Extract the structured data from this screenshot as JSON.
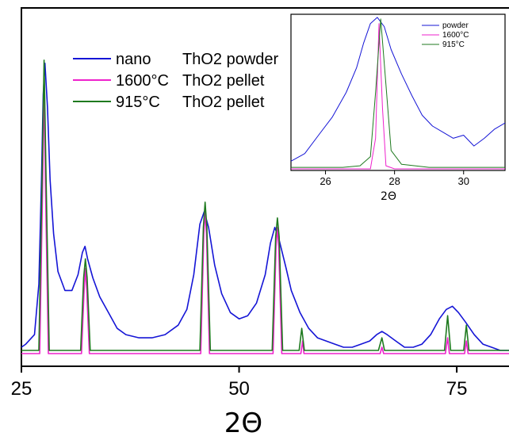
{
  "chart_data": [
    {
      "type": "line",
      "xlabel": "2Θ",
      "ylabel": "",
      "xlim": [
        25,
        81
      ],
      "xticks": [
        25,
        50,
        75
      ],
      "y_axis_shown": false,
      "legend_position": "top-left",
      "series": [
        {
          "name": "nano ThO2 powder",
          "legend_parts": [
            "nano",
            "ThO2 powder"
          ],
          "color": "#1515d6",
          "points": [
            [
              25,
              0.02
            ],
            [
              25.5,
              0.03
            ],
            [
              26.5,
              0.06
            ],
            [
              27,
              0.22
            ],
            [
              27.3,
              0.55
            ],
            [
              27.5,
              0.82
            ],
            [
              27.7,
              0.92
            ],
            [
              28,
              0.78
            ],
            [
              28.3,
              0.55
            ],
            [
              28.7,
              0.38
            ],
            [
              29.2,
              0.26
            ],
            [
              30,
              0.2
            ],
            [
              30.8,
              0.2
            ],
            [
              31.5,
              0.25
            ],
            [
              32,
              0.32
            ],
            [
              32.3,
              0.34
            ],
            [
              32.6,
              0.3
            ],
            [
              33.2,
              0.24
            ],
            [
              34,
              0.18
            ],
            [
              35,
              0.13
            ],
            [
              36,
              0.08
            ],
            [
              37,
              0.06
            ],
            [
              38.5,
              0.05
            ],
            [
              40,
              0.05
            ],
            [
              41.5,
              0.06
            ],
            [
              43,
              0.09
            ],
            [
              44,
              0.14
            ],
            [
              44.8,
              0.25
            ],
            [
              45.5,
              0.41
            ],
            [
              46,
              0.45
            ],
            [
              46.5,
              0.4
            ],
            [
              47.2,
              0.28
            ],
            [
              48,
              0.19
            ],
            [
              49,
              0.13
            ],
            [
              50,
              0.11
            ],
            [
              51,
              0.12
            ],
            [
              52,
              0.16
            ],
            [
              53,
              0.25
            ],
            [
              53.6,
              0.35
            ],
            [
              54.1,
              0.4
            ],
            [
              54.6,
              0.36
            ],
            [
              55.4,
              0.27
            ],
            [
              56,
              0.2
            ],
            [
              57,
              0.13
            ],
            [
              58,
              0.08
            ],
            [
              59,
              0.05
            ],
            [
              60,
              0.04
            ],
            [
              61,
              0.03
            ],
            [
              62,
              0.02
            ],
            [
              63,
              0.02
            ],
            [
              64,
              0.03
            ],
            [
              65,
              0.04
            ],
            [
              65.8,
              0.06
            ],
            [
              66.4,
              0.07
            ],
            [
              67,
              0.06
            ],
            [
              68,
              0.04
            ],
            [
              69,
              0.02
            ],
            [
              70,
              0.02
            ],
            [
              71,
              0.03
            ],
            [
              72,
              0.06
            ],
            [
              73,
              0.11
            ],
            [
              73.8,
              0.14
            ],
            [
              74.5,
              0.15
            ],
            [
              75.2,
              0.13
            ],
            [
              76,
              0.1
            ],
            [
              77,
              0.06
            ],
            [
              78,
              0.03
            ],
            [
              79,
              0.02
            ],
            [
              80,
              0.01
            ],
            [
              81,
              0.01
            ]
          ]
        },
        {
          "name": "1600°C ThO2 pellet",
          "legend_parts": [
            "1600°C",
            "ThO2 pellet"
          ],
          "color": "#ee22cc",
          "points": [
            [
              25,
              0.0
            ],
            [
              27.1,
              0.0
            ],
            [
              27.45,
              0.55
            ],
            [
              27.6,
              0.87
            ],
            [
              27.75,
              0.55
            ],
            [
              28.1,
              0.0
            ],
            [
              31.9,
              0.0
            ],
            [
              32.2,
              0.2
            ],
            [
              32.35,
              0.27
            ],
            [
              32.5,
              0.2
            ],
            [
              32.8,
              0.0
            ],
            [
              45.6,
              0.0
            ],
            [
              45.95,
              0.38
            ],
            [
              46.1,
              0.45
            ],
            [
              46.25,
              0.38
            ],
            [
              46.6,
              0.0
            ],
            [
              53.9,
              0.0
            ],
            [
              54.25,
              0.34
            ],
            [
              54.4,
              0.4
            ],
            [
              54.55,
              0.34
            ],
            [
              54.9,
              0.0
            ],
            [
              57.1,
              0.0
            ],
            [
              57.3,
              0.04
            ],
            [
              57.45,
              0.0
            ],
            [
              66.2,
              0.0
            ],
            [
              66.4,
              0.02
            ],
            [
              66.6,
              0.0
            ],
            [
              73.7,
              0.0
            ],
            [
              73.95,
              0.05
            ],
            [
              74.15,
              0.0
            ],
            [
              75.9,
              0.0
            ],
            [
              76.1,
              0.04
            ],
            [
              76.3,
              0.0
            ],
            [
              81,
              0.0
            ]
          ]
        },
        {
          "name": "915°C ThO2 pellet",
          "legend_parts": [
            "915°C",
            "ThO2 pellet"
          ],
          "color": "#1f7a1f",
          "points": [
            [
              25,
              0.01
            ],
            [
              27.0,
              0.01
            ],
            [
              27.4,
              0.6
            ],
            [
              27.6,
              0.93
            ],
            [
              27.8,
              0.6
            ],
            [
              28.2,
              0.01
            ],
            [
              31.8,
              0.01
            ],
            [
              32.15,
              0.24
            ],
            [
              32.35,
              0.3
            ],
            [
              32.55,
              0.24
            ],
            [
              32.9,
              0.01
            ],
            [
              45.5,
              0.01
            ],
            [
              45.9,
              0.4
            ],
            [
              46.1,
              0.48
            ],
            [
              46.3,
              0.4
            ],
            [
              46.7,
              0.01
            ],
            [
              53.8,
              0.01
            ],
            [
              54.2,
              0.37
            ],
            [
              54.4,
              0.43
            ],
            [
              54.6,
              0.37
            ],
            [
              55.0,
              0.01
            ],
            [
              56.9,
              0.01
            ],
            [
              57.2,
              0.08
            ],
            [
              57.5,
              0.01
            ],
            [
              66.0,
              0.01
            ],
            [
              66.4,
              0.05
            ],
            [
              66.7,
              0.01
            ],
            [
              73.6,
              0.01
            ],
            [
              73.95,
              0.12
            ],
            [
              74.3,
              0.01
            ],
            [
              75.8,
              0.01
            ],
            [
              76.1,
              0.09
            ],
            [
              76.4,
              0.01
            ],
            [
              81,
              0.01
            ]
          ]
        }
      ]
    },
    {
      "type": "line",
      "xlabel": "2Θ",
      "ylabel": "",
      "xlim": [
        25,
        31.2
      ],
      "xticks": [
        26,
        28,
        30
      ],
      "y_axis_shown": false,
      "legend_position": "top-right",
      "series": [
        {
          "name": "powder",
          "color": "#1515d6",
          "points": [
            [
              25,
              0.05
            ],
            [
              25.4,
              0.1
            ],
            [
              25.8,
              0.22
            ],
            [
              26.2,
              0.34
            ],
            [
              26.6,
              0.5
            ],
            [
              26.9,
              0.66
            ],
            [
              27.1,
              0.82
            ],
            [
              27.3,
              0.95
            ],
            [
              27.5,
              0.99
            ],
            [
              27.7,
              0.93
            ],
            [
              27.9,
              0.78
            ],
            [
              28.2,
              0.62
            ],
            [
              28.5,
              0.48
            ],
            [
              28.8,
              0.35
            ],
            [
              29.1,
              0.28
            ],
            [
              29.4,
              0.24
            ],
            [
              29.7,
              0.2
            ],
            [
              30.0,
              0.22
            ],
            [
              30.3,
              0.15
            ],
            [
              30.6,
              0.2
            ],
            [
              30.9,
              0.26
            ],
            [
              31.2,
              0.3
            ]
          ]
        },
        {
          "name": "1600°C",
          "color": "#ee22cc",
          "points": [
            [
              25,
              0.0
            ],
            [
              27.3,
              0.0
            ],
            [
              27.45,
              0.2
            ],
            [
              27.55,
              0.95
            ],
            [
              27.65,
              0.4
            ],
            [
              27.75,
              0.02
            ],
            [
              28.0,
              0.0
            ],
            [
              31.2,
              0.0
            ]
          ]
        },
        {
          "name": "915°C",
          "color": "#1f7a1f",
          "points": [
            [
              25,
              0.01
            ],
            [
              26.5,
              0.01
            ],
            [
              27.0,
              0.02
            ],
            [
              27.3,
              0.08
            ],
            [
              27.45,
              0.5
            ],
            [
              27.6,
              0.98
            ],
            [
              27.75,
              0.55
            ],
            [
              27.9,
              0.12
            ],
            [
              28.2,
              0.03
            ],
            [
              29.0,
              0.01
            ],
            [
              31.2,
              0.01
            ]
          ]
        }
      ]
    }
  ]
}
